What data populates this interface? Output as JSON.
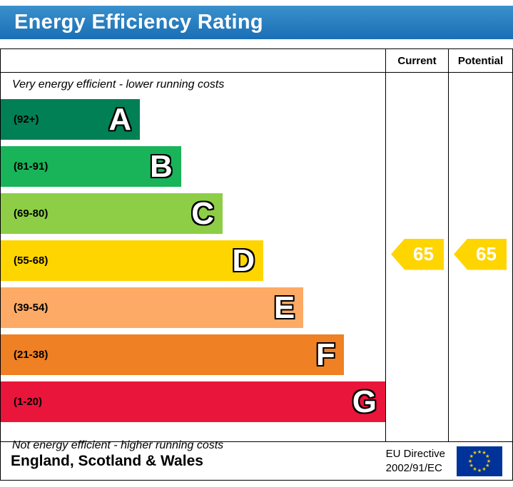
{
  "title": "Energy Efficiency Rating",
  "table": {
    "current_header": "Current",
    "potential_header": "Potential",
    "top_note": "Very energy efficient - lower running costs",
    "bottom_note": "Not energy efficient - higher running costs"
  },
  "bands": [
    {
      "letter": "A",
      "range": "(92+)",
      "color": "#008054",
      "width_pct": 36.2
    },
    {
      "letter": "B",
      "range": "(81-91)",
      "color": "#19b459",
      "width_pct": 46.9
    },
    {
      "letter": "C",
      "range": "(69-80)",
      "color": "#8dce46",
      "width_pct": 57.7
    },
    {
      "letter": "D",
      "range": "(55-68)",
      "color": "#ffd500",
      "width_pct": 68.3
    },
    {
      "letter": "E",
      "range": "(39-54)",
      "color": "#fcaa65",
      "width_pct": 78.7
    },
    {
      "letter": "F",
      "range": "(21-38)",
      "color": "#ef8023",
      "width_pct": 89.2
    },
    {
      "letter": "G",
      "range": "(1-20)",
      "color": "#e9153b",
      "width_pct": 100
    }
  ],
  "markers": {
    "current": {
      "value": "65",
      "band_index": 3,
      "color": "#ffd500"
    },
    "potential": {
      "value": "65",
      "band_index": 3,
      "color": "#ffd500"
    }
  },
  "footer": {
    "region": "England, Scotland & Wales",
    "directive_line1": "EU Directive",
    "directive_line2": "2002/91/EC"
  },
  "colors": {
    "banner_top": "#3a90cc",
    "banner_bottom": "#1a6fb5",
    "border": "#000000",
    "flag_blue": "#003399",
    "flag_star": "#ffcc00"
  },
  "chart_data": {
    "type": "bar",
    "title": "Energy Efficiency Rating",
    "categories": [
      "A",
      "B",
      "C",
      "D",
      "E",
      "F",
      "G"
    ],
    "band_ranges": [
      "92+",
      "81-91",
      "69-80",
      "55-68",
      "39-54",
      "21-38",
      "1-20"
    ],
    "band_colors": [
      "#008054",
      "#19b459",
      "#8dce46",
      "#ffd500",
      "#fcaa65",
      "#ef8023",
      "#e9153b"
    ],
    "bar_relative_widths": [
      0.36,
      0.47,
      0.58,
      0.68,
      0.79,
      0.89,
      1.0
    ],
    "scale_min": 1,
    "scale_max": 100,
    "current": 65,
    "potential": 65,
    "current_band": "D",
    "potential_band": "D",
    "columns": [
      "Current",
      "Potential"
    ],
    "annotations": [
      "Very energy efficient - lower running costs",
      "Not energy efficient - higher running costs"
    ],
    "region": "England, Scotland & Wales",
    "directive": "EU Directive 2002/91/EC"
  }
}
